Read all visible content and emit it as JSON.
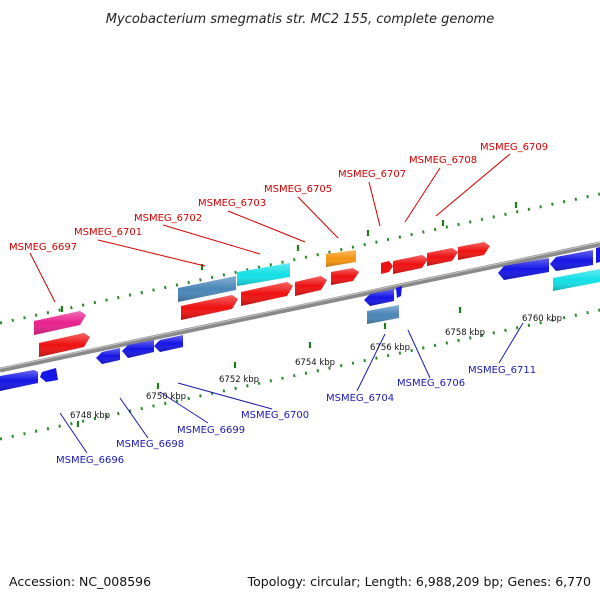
{
  "title": "Mycobacterium smegmatis str. MC2 155, complete genome",
  "footer": {
    "accession": "Accession: NC_008596",
    "summary": "Topology: circular; Length: 6,988,209 bp; Genes: 6,770"
  },
  "ticks": [
    "6748 kbp",
    "6750 kbp",
    "6752 kbp",
    "6754 kbp",
    "6756 kbp",
    "6758 kbp",
    "6760 kbp"
  ],
  "forward_labels": [
    "MSMEG_6697",
    "MSMEG_6701",
    "MSMEG_6702",
    "MSMEG_6703",
    "MSMEG_6705",
    "MSMEG_6707",
    "MSMEG_6708",
    "MSMEG_6709"
  ],
  "reverse_labels": [
    "MSMEG_6696",
    "MSMEG_6698",
    "MSMEG_6699",
    "MSMEG_6700",
    "MSMEG_6704",
    "MSMEG_6706",
    "MSMEG_6711"
  ],
  "colors": {
    "forward_gene": "#ee1111",
    "reverse_gene": "#1515e6",
    "rna_cyan": "#12e0e6",
    "steel_blue": "#4a86b8",
    "magenta": "#e8208c",
    "orange": "#f49511",
    "dotted_ring": "#2a8a2a",
    "backbone": "#8a8a8a"
  }
}
